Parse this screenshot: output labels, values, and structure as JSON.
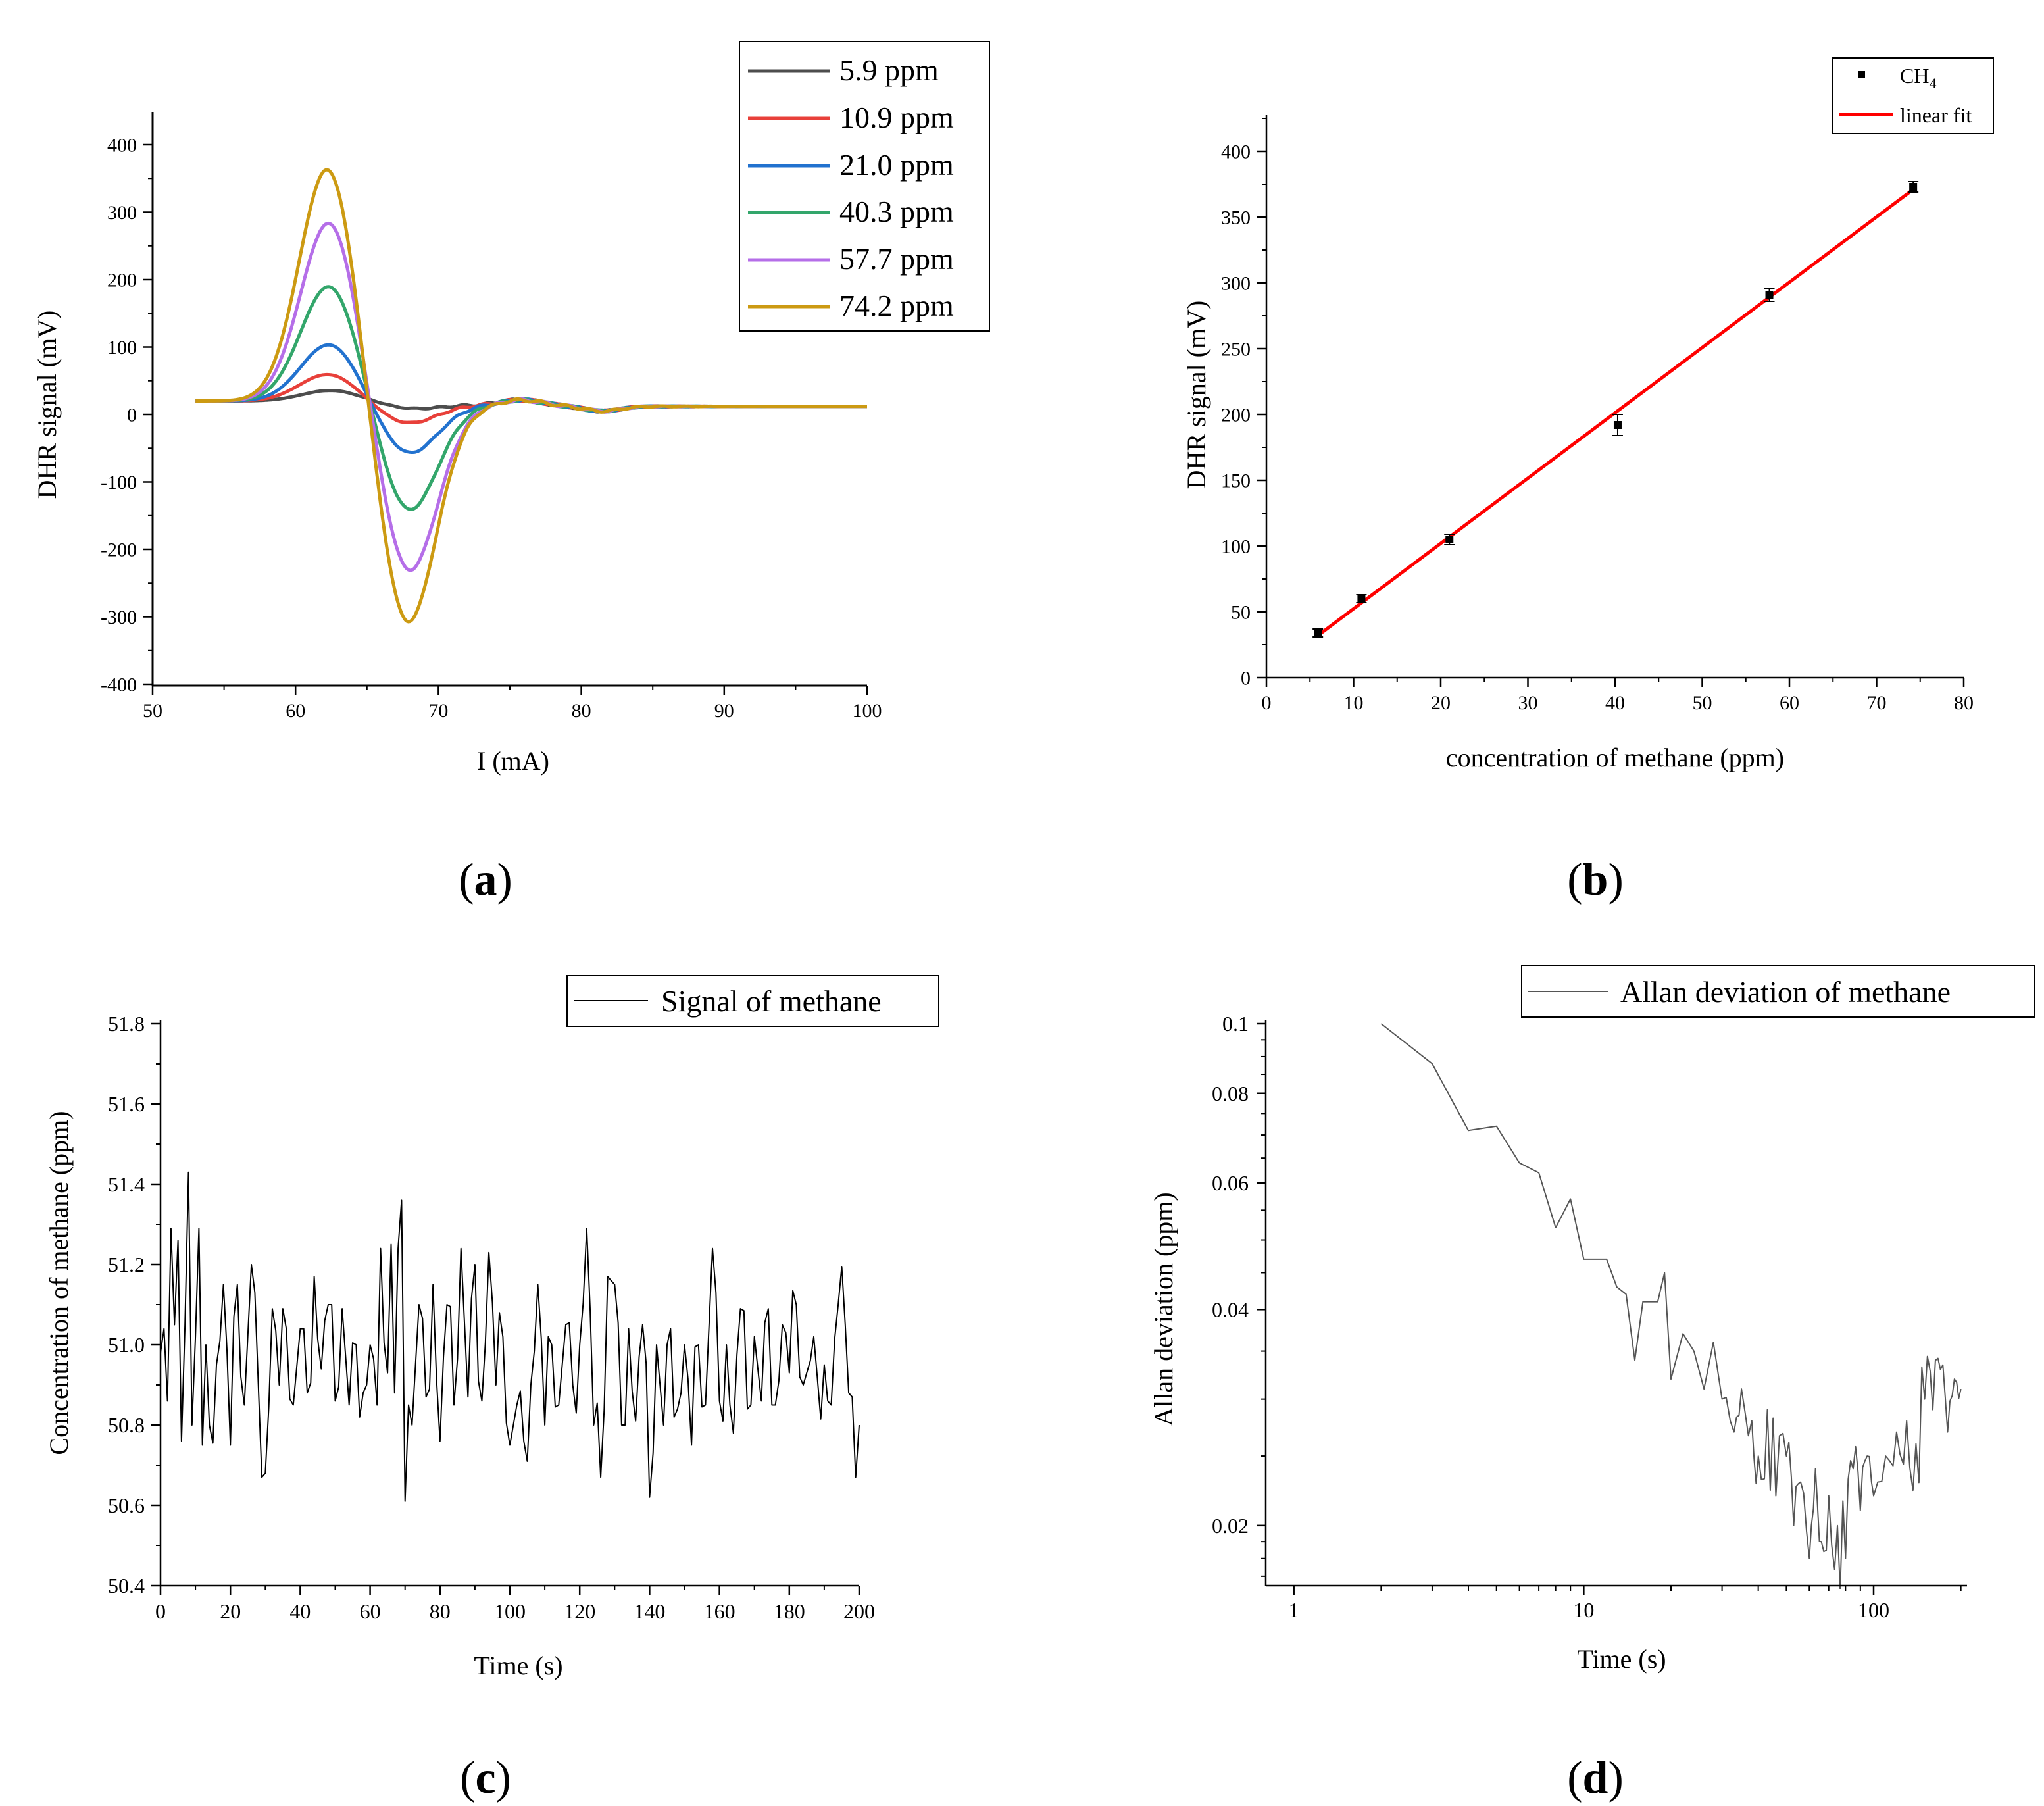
{
  "panels": {
    "a": {
      "label": "a"
    },
    "b": {
      "label": "b"
    },
    "c": {
      "label": "c"
    },
    "d": {
      "label": "d"
    }
  },
  "chart_data": [
    {
      "id": "a",
      "type": "line",
      "xlabel": "I (mA)",
      "ylabel": "DHR signal (mV)",
      "xlim": [
        50,
        100
      ],
      "ylim": [
        -400,
        420
      ],
      "xticks": [
        50,
        60,
        70,
        80,
        90,
        100
      ],
      "yticks": [
        -400,
        -300,
        -200,
        -100,
        0,
        100,
        200,
        300,
        400
      ],
      "legend_position": "top-right",
      "series": [
        {
          "name": "5.9 ppm",
          "color": "#4d4d4d",
          "concentration": 5.9,
          "peak": 36,
          "trough": 1,
          "peak_x": 62.5,
          "trough_x": 68.0
        },
        {
          "name": "10.9 ppm",
          "color": "#e8403a",
          "concentration": 10.9,
          "peak": 60,
          "trough": -21,
          "peak_x": 62.3,
          "trough_x": 67.8
        },
        {
          "name": "21.0 ppm",
          "color": "#2272cf",
          "concentration": 21.0,
          "peak": 105,
          "trough": -66,
          "peak_x": 62.4,
          "trough_x": 67.9
        },
        {
          "name": "40.3 ppm",
          "color": "#33a66b",
          "concentration": 40.3,
          "peak": 193,
          "trough": -152,
          "peak_x": 62.4,
          "trough_x": 67.9
        },
        {
          "name": "57.7 ppm",
          "color": "#b56ee8",
          "concentration": 57.7,
          "peak": 289,
          "trough": -244,
          "peak_x": 62.4,
          "trough_x": 67.9
        },
        {
          "name": "74.2 ppm",
          "color": "#cc9a12",
          "concentration": 74.2,
          "peak": 370,
          "trough": -322,
          "peak_x": 62.3,
          "trough_x": 67.8
        }
      ]
    },
    {
      "id": "b",
      "type": "scatter",
      "xlabel": "concentration of methane (ppm)",
      "ylabel": "DHR signal (mV)",
      "xlim": [
        0,
        80
      ],
      "ylim": [
        0,
        425
      ],
      "xticks": [
        0,
        10,
        20,
        30,
        40,
        50,
        60,
        70,
        80
      ],
      "yticks": [
        0,
        50,
        100,
        150,
        200,
        250,
        300,
        350,
        400
      ],
      "legend_position": "top-right",
      "legend": {
        "points_name": "CH",
        "points_subscript": "4",
        "fit_name": "linear fit"
      },
      "points": [
        {
          "x": 5.9,
          "y": 34,
          "err": 3
        },
        {
          "x": 10.9,
          "y": 60,
          "err": 3
        },
        {
          "x": 21.0,
          "y": 105,
          "err": 4
        },
        {
          "x": 40.3,
          "y": 192,
          "err": 8
        },
        {
          "x": 57.7,
          "y": 291,
          "err": 5
        },
        {
          "x": 74.2,
          "y": 373,
          "err": 4
        }
      ],
      "fit": {
        "x0": 5.9,
        "y0": 32,
        "x1": 74.2,
        "y1": 371,
        "color": "#ff0000"
      }
    },
    {
      "id": "c",
      "type": "line",
      "xlabel": "Time (s)",
      "ylabel": "Concentration of methane (ppm)",
      "xlim": [
        0,
        200
      ],
      "ylim": [
        50.4,
        51.8
      ],
      "xticks": [
        0,
        20,
        40,
        60,
        80,
        100,
        120,
        140,
        160,
        180,
        200
      ],
      "yticks": [
        50.4,
        50.6,
        50.8,
        51.0,
        51.2,
        51.4,
        51.6,
        51.8
      ],
      "legend_position": "top-right",
      "series": [
        {
          "name": "Signal of methane",
          "color": "#000000"
        }
      ],
      "anchors": [
        [
          0,
          50.98
        ],
        [
          1,
          51.04
        ],
        [
          2,
          50.86
        ],
        [
          3,
          51.29
        ],
        [
          4,
          51.05
        ],
        [
          5,
          51.26
        ],
        [
          6,
          50.76
        ],
        [
          7,
          51.05
        ],
        [
          8,
          51.43
        ],
        [
          9,
          50.8
        ],
        [
          10,
          51.02
        ],
        [
          11,
          51.29
        ],
        [
          12,
          50.75
        ],
        [
          13,
          51.0
        ],
        [
          14,
          50.8
        ],
        [
          16,
          50.95
        ],
        [
          18,
          51.15
        ],
        [
          20,
          50.75
        ],
        [
          22,
          51.15
        ],
        [
          24,
          50.85
        ],
        [
          26,
          51.2
        ],
        [
          28,
          50.9
        ],
        [
          30,
          50.68
        ],
        [
          32,
          51.09
        ],
        [
          34,
          50.9
        ],
        [
          36,
          51.04
        ],
        [
          38,
          50.85
        ],
        [
          40,
          51.04
        ],
        [
          42,
          50.88
        ],
        [
          44,
          51.17
        ],
        [
          46,
          50.94
        ],
        [
          48,
          51.1
        ],
        [
          50,
          50.86
        ],
        [
          52,
          51.09
        ],
        [
          54,
          50.85
        ],
        [
          56,
          51.0
        ],
        [
          58,
          50.88
        ],
        [
          60,
          51.0
        ],
        [
          62,
          50.85
        ],
        [
          63,
          51.24
        ],
        [
          65,
          50.93
        ],
        [
          66,
          51.25
        ],
        [
          67,
          50.88
        ],
        [
          68,
          51.24
        ],
        [
          69,
          51.36
        ],
        [
          70,
          50.61
        ],
        [
          71,
          50.85
        ],
        [
          72,
          50.8
        ],
        [
          74,
          51.1
        ],
        [
          76,
          50.87
        ],
        [
          78,
          51.15
        ],
        [
          80,
          50.76
        ],
        [
          82,
          51.1
        ],
        [
          84,
          50.85
        ],
        [
          86,
          51.24
        ],
        [
          88,
          50.87
        ],
        [
          90,
          51.2
        ],
        [
          92,
          50.86
        ],
        [
          94,
          51.23
        ],
        [
          96,
          50.9
        ],
        [
          98,
          51.02
        ],
        [
          100,
          50.75
        ],
        [
          102,
          50.85
        ],
        [
          104,
          50.76
        ],
        [
          106,
          50.9
        ],
        [
          108,
          51.15
        ],
        [
          110,
          50.8
        ],
        [
          112,
          51.0
        ],
        [
          114,
          50.85
        ],
        [
          116,
          51.05
        ],
        [
          118,
          50.9
        ],
        [
          120,
          51.0
        ],
        [
          122,
          51.29
        ],
        [
          124,
          50.8
        ],
        [
          126,
          50.67
        ],
        [
          128,
          51.17
        ],
        [
          130,
          51.15
        ],
        [
          132,
          50.8
        ],
        [
          134,
          51.04
        ],
        [
          136,
          50.81
        ],
        [
          138,
          51.05
        ],
        [
          140,
          50.62
        ],
        [
          142,
          51.0
        ],
        [
          144,
          50.8
        ],
        [
          146,
          51.04
        ],
        [
          148,
          50.84
        ],
        [
          150,
          51.0
        ],
        [
          152,
          50.75
        ],
        [
          154,
          51.0
        ],
        [
          156,
          50.85
        ],
        [
          158,
          51.24
        ],
        [
          160,
          50.86
        ],
        [
          162,
          51.0
        ],
        [
          164,
          50.78
        ],
        [
          166,
          51.09
        ],
        [
          168,
          50.84
        ],
        [
          170,
          51.02
        ],
        [
          172,
          50.86
        ],
        [
          174,
          51.09
        ],
        [
          176,
          50.85
        ],
        [
          178,
          51.05
        ],
        [
          180,
          50.93
        ],
        [
          182,
          51.1
        ],
        [
          184,
          50.9
        ],
        [
          186,
          50.96
        ],
        [
          188,
          50.92
        ],
        [
          190,
          50.95
        ],
        [
          192,
          50.85
        ],
        [
          194,
          51.1
        ],
        [
          196,
          51.05
        ],
        [
          198,
          50.87
        ],
        [
          199,
          50.67
        ],
        [
          200,
          50.8
        ]
      ]
    },
    {
      "id": "d",
      "type": "line",
      "xlabel": "Time (s)",
      "ylabel": "Allan deviation (ppm)",
      "xscale": "log",
      "yscale": "log",
      "xlim": [
        0.8,
        210
      ],
      "ylim": [
        0.0165,
        0.1
      ],
      "xticks": [
        1,
        10,
        100
      ],
      "yticks": [
        0.02,
        0.04,
        0.06,
        0.08,
        0.1
      ],
      "legend_position": "top-right",
      "series": [
        {
          "name": "Allan deviation of methane",
          "color": "#555555"
        }
      ],
      "anchors": [
        [
          2,
          0.1
        ],
        [
          3,
          0.088
        ],
        [
          4,
          0.071
        ],
        [
          5,
          0.072
        ],
        [
          6,
          0.064
        ],
        [
          7,
          0.062
        ],
        [
          8,
          0.052
        ],
        [
          9,
          0.057
        ],
        [
          10,
          0.047
        ],
        [
          12,
          0.047
        ],
        [
          13,
          0.043
        ],
        [
          14,
          0.042
        ],
        [
          15,
          0.034
        ],
        [
          16,
          0.041
        ],
        [
          18,
          0.041
        ],
        [
          19,
          0.045
        ],
        [
          20,
          0.032
        ],
        [
          22,
          0.037
        ],
        [
          24,
          0.035
        ],
        [
          26,
          0.031
        ],
        [
          28,
          0.036
        ],
        [
          30,
          0.03
        ],
        [
          33,
          0.027
        ],
        [
          35,
          0.031
        ],
        [
          38,
          0.028
        ],
        [
          40,
          0.025
        ],
        [
          43,
          0.029
        ],
        [
          46,
          0.022
        ],
        [
          50,
          0.025
        ],
        [
          53,
          0.02
        ],
        [
          56,
          0.023
        ],
        [
          60,
          0.018
        ],
        [
          63,
          0.024
        ],
        [
          66,
          0.019
        ],
        [
          70,
          0.022
        ],
        [
          75,
          0.02
        ],
        [
          80,
          0.018
        ],
        [
          85,
          0.024
        ],
        [
          90,
          0.021
        ],
        [
          95,
          0.025
        ],
        [
          100,
          0.022
        ],
        [
          110,
          0.025
        ],
        [
          120,
          0.027
        ],
        [
          130,
          0.028
        ],
        [
          140,
          0.026
        ],
        [
          150,
          0.03
        ],
        [
          160,
          0.029
        ],
        [
          170,
          0.033
        ],
        [
          180,
          0.027
        ],
        [
          190,
          0.032
        ],
        [
          200,
          0.031
        ]
      ]
    }
  ]
}
